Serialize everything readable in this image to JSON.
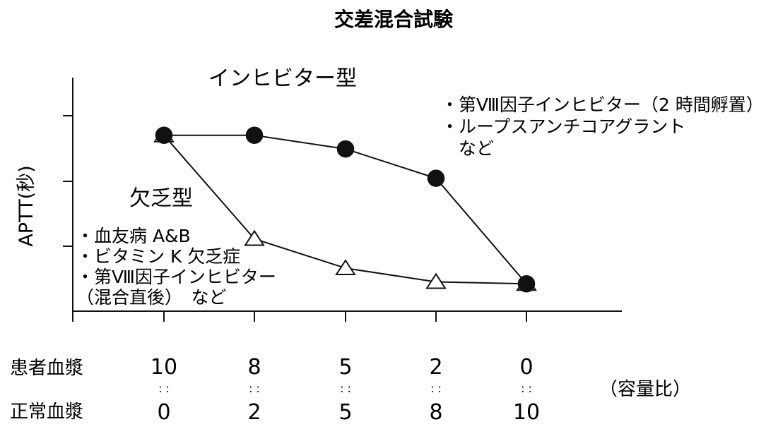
{
  "chart_data": {
    "type": "line",
    "title": "交差混合試験",
    "ylabel": "APTT(秒)",
    "xlabel": "",
    "categories": [
      "10",
      "8",
      "5",
      "2",
      "0"
    ],
    "x_rows": [
      {
        "label": "患者血漿",
        "values": [
          "10",
          "8",
          "5",
          "2",
          "0"
        ]
      },
      {
        "label": "正常血漿",
        "values": [
          "0",
          "2",
          "5",
          "8",
          "10"
        ]
      }
    ],
    "ratio_separator": ": :",
    "ratio_unit": "（容量比）",
    "ylim": [
      0,
      100
    ],
    "series": [
      {
        "name": "インヒビター型",
        "marker": "filled-circle",
        "color": "#111111",
        "values": [
          90,
          90,
          83,
          68,
          14
        ],
        "notes": [
          "・第Ⅷ因子インヒビター（2 時間孵置）",
          "・ループスアンチコアグラント",
          "　など"
        ]
      },
      {
        "name": "欠乏型",
        "marker": "open-triangle",
        "color": "#111111",
        "values": [
          90,
          37,
          22,
          15,
          14
        ],
        "notes": [
          "・血友病 A&B",
          "・ビタミン K 欠乏症",
          "・第Ⅷ因子インヒビター",
          "（混合直後）　など"
        ]
      }
    ]
  }
}
